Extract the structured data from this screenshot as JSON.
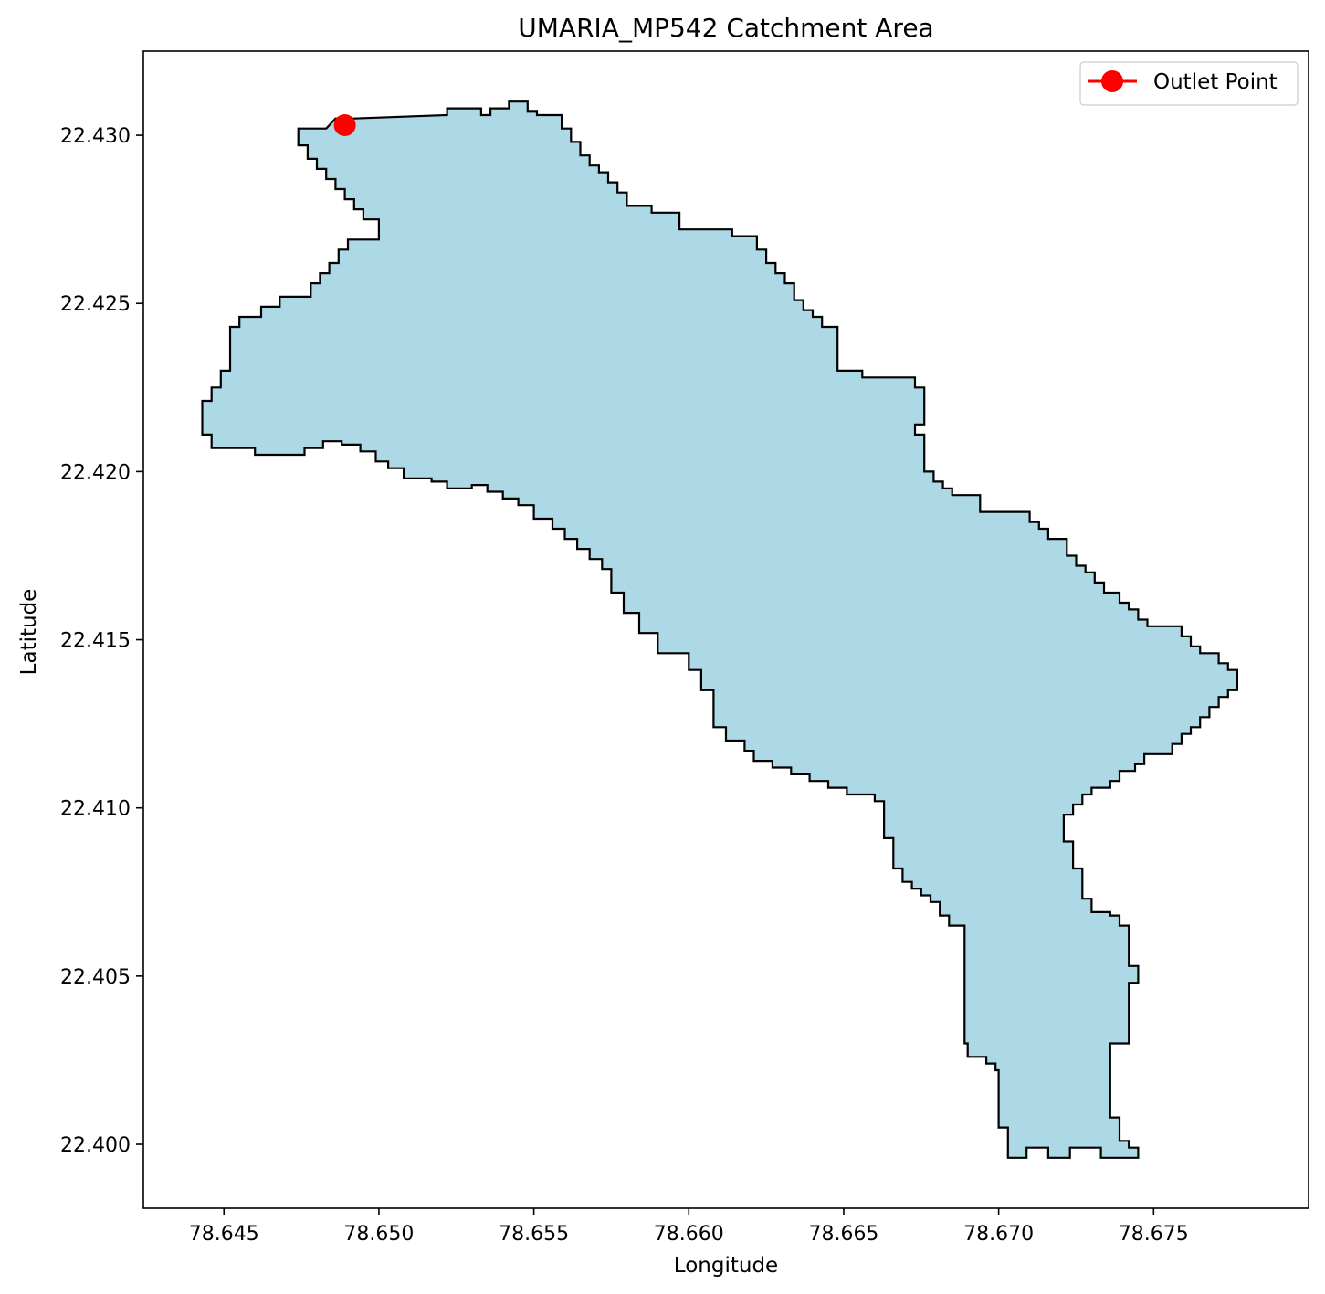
{
  "chart_data": {
    "type": "map",
    "title": "UMARIA_MP542 Catchment Area",
    "xlabel": "Longitude",
    "ylabel": "Latitude",
    "xlim": [
      78.6424,
      78.68
    ],
    "ylim": [
      22.3981,
      22.4325
    ],
    "xticks": [
      "78.645",
      "78.650",
      "78.655",
      "78.660",
      "78.665",
      "78.670",
      "78.675"
    ],
    "yticks": [
      "22.400",
      "22.405",
      "22.410",
      "22.415",
      "22.420",
      "22.425",
      "22.430"
    ],
    "grid": false,
    "legend": {
      "position": "top-right",
      "entries": [
        "Outlet Point"
      ]
    },
    "colors": {
      "fill": "#add8e6",
      "outline": "#000000",
      "outlet": "#ff0000"
    },
    "catchment_polygon": [
      [
        78.6483,
        22.4302
      ],
      [
        78.6486,
        22.4305
      ],
      [
        78.6492,
        22.4305
      ],
      [
        78.6522,
        22.4306
      ],
      [
        78.6522,
        22.4308
      ],
      [
        78.6533,
        22.4308
      ],
      [
        78.6533,
        22.4306
      ],
      [
        78.6536,
        22.4306
      ],
      [
        78.6536,
        22.4308
      ],
      [
        78.6542,
        22.4308
      ],
      [
        78.6542,
        22.431
      ],
      [
        78.6548,
        22.431
      ],
      [
        78.6548,
        22.4307
      ],
      [
        78.6551,
        22.4307
      ],
      [
        78.6551,
        22.4306
      ],
      [
        78.6559,
        22.4306
      ],
      [
        78.6559,
        22.4302
      ],
      [
        78.6562,
        22.4302
      ],
      [
        78.6562,
        22.4298
      ],
      [
        78.6565,
        22.4298
      ],
      [
        78.6565,
        22.4294
      ],
      [
        78.6568,
        22.4294
      ],
      [
        78.6568,
        22.4291
      ],
      [
        78.6571,
        22.4291
      ],
      [
        78.6571,
        22.4289
      ],
      [
        78.6574,
        22.4289
      ],
      [
        78.6574,
        22.4286
      ],
      [
        78.6577,
        22.4286
      ],
      [
        78.6577,
        22.4283
      ],
      [
        78.658,
        22.4283
      ],
      [
        78.658,
        22.4279
      ],
      [
        78.6588,
        22.4279
      ],
      [
        78.6588,
        22.4277
      ],
      [
        78.6597,
        22.4277
      ],
      [
        78.6597,
        22.4272
      ],
      [
        78.6614,
        22.4272
      ],
      [
        78.6614,
        22.427
      ],
      [
        78.6622,
        22.427
      ],
      [
        78.6622,
        22.4266
      ],
      [
        78.6625,
        22.4266
      ],
      [
        78.6625,
        22.4262
      ],
      [
        78.6628,
        22.4262
      ],
      [
        78.6628,
        22.4259
      ],
      [
        78.6631,
        22.4259
      ],
      [
        78.6631,
        22.4256
      ],
      [
        78.6634,
        22.4256
      ],
      [
        78.6634,
        22.4251
      ],
      [
        78.6637,
        22.4251
      ],
      [
        78.6637,
        22.4248
      ],
      [
        78.664,
        22.4248
      ],
      [
        78.664,
        22.4246
      ],
      [
        78.6643,
        22.4246
      ],
      [
        78.6643,
        22.4243
      ],
      [
        78.6648,
        22.4243
      ],
      [
        78.6648,
        22.423
      ],
      [
        78.6656,
        22.423
      ],
      [
        78.6656,
        22.4228
      ],
      [
        78.6673,
        22.4228
      ],
      [
        78.6673,
        22.4225
      ],
      [
        78.6676,
        22.4225
      ],
      [
        78.6676,
        22.4214
      ],
      [
        78.6673,
        22.4214
      ],
      [
        78.6673,
        22.4211
      ],
      [
        78.6676,
        22.4211
      ],
      [
        78.6676,
        22.42
      ],
      [
        78.6679,
        22.42
      ],
      [
        78.6679,
        22.4197
      ],
      [
        78.6682,
        22.4197
      ],
      [
        78.6682,
        22.4195
      ],
      [
        78.6685,
        22.4195
      ],
      [
        78.6685,
        22.4193
      ],
      [
        78.6694,
        22.4193
      ],
      [
        78.6694,
        22.4188
      ],
      [
        78.671,
        22.4188
      ],
      [
        78.671,
        22.4185
      ],
      [
        78.6713,
        22.4185
      ],
      [
        78.6713,
        22.4183
      ],
      [
        78.6716,
        22.4183
      ],
      [
        78.6716,
        22.418
      ],
      [
        78.6722,
        22.418
      ],
      [
        78.6722,
        22.4175
      ],
      [
        78.6725,
        22.4175
      ],
      [
        78.6725,
        22.4172
      ],
      [
        78.6728,
        22.4172
      ],
      [
        78.6728,
        22.417
      ],
      [
        78.6731,
        22.417
      ],
      [
        78.6731,
        22.4167
      ],
      [
        78.6734,
        22.4167
      ],
      [
        78.6734,
        22.4164
      ],
      [
        78.6739,
        22.4164
      ],
      [
        78.6739,
        22.4161
      ],
      [
        78.6742,
        22.4161
      ],
      [
        78.6742,
        22.4159
      ],
      [
        78.6745,
        22.4159
      ],
      [
        78.6745,
        22.4156
      ],
      [
        78.6748,
        22.4156
      ],
      [
        78.6748,
        22.4154
      ],
      [
        78.6759,
        22.4154
      ],
      [
        78.6759,
        22.4151
      ],
      [
        78.6762,
        22.4151
      ],
      [
        78.6762,
        22.4148
      ],
      [
        78.6765,
        22.4148
      ],
      [
        78.6765,
        22.4146
      ],
      [
        78.6771,
        22.4146
      ],
      [
        78.6771,
        22.4143
      ],
      [
        78.6774,
        22.4143
      ],
      [
        78.6774,
        22.4141
      ],
      [
        78.6777,
        22.4141
      ],
      [
        78.6777,
        22.4135
      ],
      [
        78.6774,
        22.4135
      ],
      [
        78.6774,
        22.4133
      ],
      [
        78.6771,
        22.4133
      ],
      [
        78.6771,
        22.413
      ],
      [
        78.6768,
        22.413
      ],
      [
        78.6768,
        22.4127
      ],
      [
        78.6765,
        22.4127
      ],
      [
        78.6765,
        22.4124
      ],
      [
        78.6762,
        22.4124
      ],
      [
        78.6762,
        22.4122
      ],
      [
        78.6759,
        22.4122
      ],
      [
        78.6759,
        22.4119
      ],
      [
        78.6756,
        22.4119
      ],
      [
        78.6756,
        22.4116
      ],
      [
        78.6747,
        22.4116
      ],
      [
        78.6747,
        22.4113
      ],
      [
        78.6744,
        22.4113
      ],
      [
        78.6744,
        22.4111
      ],
      [
        78.6739,
        22.4111
      ],
      [
        78.6739,
        22.4108
      ],
      [
        78.6736,
        22.4108
      ],
      [
        78.6736,
        22.4106
      ],
      [
        78.673,
        22.4106
      ],
      [
        78.673,
        22.4104
      ],
      [
        78.6727,
        22.4104
      ],
      [
        78.6727,
        22.4101
      ],
      [
        78.6724,
        22.4101
      ],
      [
        78.6724,
        22.4098
      ],
      [
        78.6721,
        22.4098
      ],
      [
        78.6721,
        22.409
      ],
      [
        78.6724,
        22.409
      ],
      [
        78.6724,
        22.4082
      ],
      [
        78.6727,
        22.4082
      ],
      [
        78.6727,
        22.4073
      ],
      [
        78.673,
        22.4073
      ],
      [
        78.673,
        22.4069
      ],
      [
        78.6736,
        22.4069
      ],
      [
        78.6736,
        22.4068
      ],
      [
        78.6739,
        22.4068
      ],
      [
        78.6739,
        22.4065
      ],
      [
        78.6742,
        22.4065
      ],
      [
        78.6742,
        22.4053
      ],
      [
        78.6745,
        22.4053
      ],
      [
        78.6745,
        22.4048
      ],
      [
        78.6742,
        22.4048
      ],
      [
        78.6742,
        22.403
      ],
      [
        78.6736,
        22.403
      ],
      [
        78.6736,
        22.4008
      ],
      [
        78.6739,
        22.4008
      ],
      [
        78.6739,
        22.4001
      ],
      [
        78.6742,
        22.4001
      ],
      [
        78.6742,
        22.3999
      ],
      [
        78.6745,
        22.3999
      ],
      [
        78.6745,
        22.3996
      ],
      [
        78.6733,
        22.3996
      ],
      [
        78.6733,
        22.3999
      ],
      [
        78.6723,
        22.3999
      ],
      [
        78.6723,
        22.3996
      ],
      [
        78.6716,
        22.3996
      ],
      [
        78.6716,
        22.3999
      ],
      [
        78.6709,
        22.3999
      ],
      [
        78.6709,
        22.3996
      ],
      [
        78.6703,
        22.3996
      ],
      [
        78.6703,
        22.4005
      ],
      [
        78.67,
        22.4005
      ],
      [
        78.67,
        22.4022
      ],
      [
        78.6699,
        22.4022
      ],
      [
        78.6699,
        22.4024
      ],
      [
        78.6696,
        22.4024
      ],
      [
        78.6696,
        22.4026
      ],
      [
        78.669,
        22.4026
      ],
      [
        78.669,
        22.403
      ],
      [
        78.6689,
        22.403
      ],
      [
        78.6689,
        22.4065
      ],
      [
        78.6684,
        22.4065
      ],
      [
        78.6684,
        22.4068
      ],
      [
        78.6681,
        22.4068
      ],
      [
        78.6681,
        22.4072
      ],
      [
        78.6678,
        22.4072
      ],
      [
        78.6678,
        22.4074
      ],
      [
        78.6675,
        22.4074
      ],
      [
        78.6675,
        22.4076
      ],
      [
        78.6672,
        22.4076
      ],
      [
        78.6672,
        22.4078
      ],
      [
        78.6669,
        22.4078
      ],
      [
        78.6669,
        22.4082
      ],
      [
        78.6666,
        22.4082
      ],
      [
        78.6666,
        22.4091
      ],
      [
        78.6663,
        22.4091
      ],
      [
        78.6663,
        22.4102
      ],
      [
        78.666,
        22.4102
      ],
      [
        78.666,
        22.4104
      ],
      [
        78.6651,
        22.4104
      ],
      [
        78.6651,
        22.4106
      ],
      [
        78.6645,
        22.4106
      ],
      [
        78.6645,
        22.4108
      ],
      [
        78.6639,
        22.4108
      ],
      [
        78.6639,
        22.411
      ],
      [
        78.6633,
        22.411
      ],
      [
        78.6633,
        22.4112
      ],
      [
        78.6627,
        22.4112
      ],
      [
        78.6627,
        22.4114
      ],
      [
        78.6621,
        22.4114
      ],
      [
        78.6621,
        22.4117
      ],
      [
        78.6618,
        22.4117
      ],
      [
        78.6618,
        22.412
      ],
      [
        78.6612,
        22.412
      ],
      [
        78.6612,
        22.4124
      ],
      [
        78.6608,
        22.4124
      ],
      [
        78.6608,
        22.4135
      ],
      [
        78.6604,
        22.4135
      ],
      [
        78.6604,
        22.4141
      ],
      [
        78.66,
        22.4141
      ],
      [
        78.66,
        22.4146
      ],
      [
        78.659,
        22.4146
      ],
      [
        78.659,
        22.4152
      ],
      [
        78.6584,
        22.4152
      ],
      [
        78.6584,
        22.4158
      ],
      [
        78.6579,
        22.4158
      ],
      [
        78.6579,
        22.4164
      ],
      [
        78.6575,
        22.4164
      ],
      [
        78.6575,
        22.4171
      ],
      [
        78.6572,
        22.4171
      ],
      [
        78.6572,
        22.4174
      ],
      [
        78.6568,
        22.4174
      ],
      [
        78.6568,
        22.4177
      ],
      [
        78.6564,
        22.4177
      ],
      [
        78.6564,
        22.418
      ],
      [
        78.656,
        22.418
      ],
      [
        78.656,
        22.4183
      ],
      [
        78.6556,
        22.4183
      ],
      [
        78.6556,
        22.4186
      ],
      [
        78.655,
        22.4186
      ],
      [
        78.655,
        22.419
      ],
      [
        78.6545,
        22.419
      ],
      [
        78.6545,
        22.4192
      ],
      [
        78.654,
        22.4192
      ],
      [
        78.654,
        22.4194
      ],
      [
        78.6535,
        22.4194
      ],
      [
        78.6535,
        22.4196
      ],
      [
        78.653,
        22.4196
      ],
      [
        78.653,
        22.4195
      ],
      [
        78.6522,
        22.4195
      ],
      [
        78.6522,
        22.4197
      ],
      [
        78.6517,
        22.4197
      ],
      [
        78.6517,
        22.4198
      ],
      [
        78.6508,
        22.4198
      ],
      [
        78.6508,
        22.4201
      ],
      [
        78.6503,
        22.4201
      ],
      [
        78.6503,
        22.4203
      ],
      [
        78.6499,
        22.4203
      ],
      [
        78.6499,
        22.4206
      ],
      [
        78.6494,
        22.4206
      ],
      [
        78.6494,
        22.4208
      ],
      [
        78.6488,
        22.4208
      ],
      [
        78.6488,
        22.4209
      ],
      [
        78.6482,
        22.4209
      ],
      [
        78.6482,
        22.4207
      ],
      [
        78.6476,
        22.4207
      ],
      [
        78.6476,
        22.4205
      ],
      [
        78.646,
        22.4205
      ],
      [
        78.646,
        22.4207
      ],
      [
        78.6446,
        22.4207
      ],
      [
        78.6446,
        22.4211
      ],
      [
        78.6443,
        22.4211
      ],
      [
        78.6443,
        22.4221
      ],
      [
        78.6446,
        22.4221
      ],
      [
        78.6446,
        22.4225
      ],
      [
        78.6449,
        22.4225
      ],
      [
        78.6449,
        22.423
      ],
      [
        78.6452,
        22.423
      ],
      [
        78.6452,
        22.4243
      ],
      [
        78.6455,
        22.4243
      ],
      [
        78.6455,
        22.4246
      ],
      [
        78.6462,
        22.4246
      ],
      [
        78.6462,
        22.4249
      ],
      [
        78.6468,
        22.4249
      ],
      [
        78.6468,
        22.4252
      ],
      [
        78.6478,
        22.4252
      ],
      [
        78.6478,
        22.4256
      ],
      [
        78.6481,
        22.4256
      ],
      [
        78.6481,
        22.4259
      ],
      [
        78.6484,
        22.4259
      ],
      [
        78.6484,
        22.4262
      ],
      [
        78.6487,
        22.4262
      ],
      [
        78.6487,
        22.4266
      ],
      [
        78.649,
        22.4266
      ],
      [
        78.649,
        22.4269
      ],
      [
        78.65,
        22.4269
      ],
      [
        78.65,
        22.4275
      ],
      [
        78.6495,
        22.4275
      ],
      [
        78.6495,
        22.4278
      ],
      [
        78.6492,
        22.4278
      ],
      [
        78.6492,
        22.4281
      ],
      [
        78.6489,
        22.4281
      ],
      [
        78.6489,
        22.4284
      ],
      [
        78.6486,
        22.4284
      ],
      [
        78.6486,
        22.4287
      ],
      [
        78.6483,
        22.4287
      ],
      [
        78.6483,
        22.429
      ],
      [
        78.648,
        22.429
      ],
      [
        78.648,
        22.4293
      ],
      [
        78.6477,
        22.4293
      ],
      [
        78.6477,
        22.4297
      ],
      [
        78.6474,
        22.4297
      ],
      [
        78.6474,
        22.4302
      ]
    ],
    "outlet_point": {
      "name": "Outlet Point",
      "lon": 78.6489,
      "lat": 22.4303
    }
  }
}
